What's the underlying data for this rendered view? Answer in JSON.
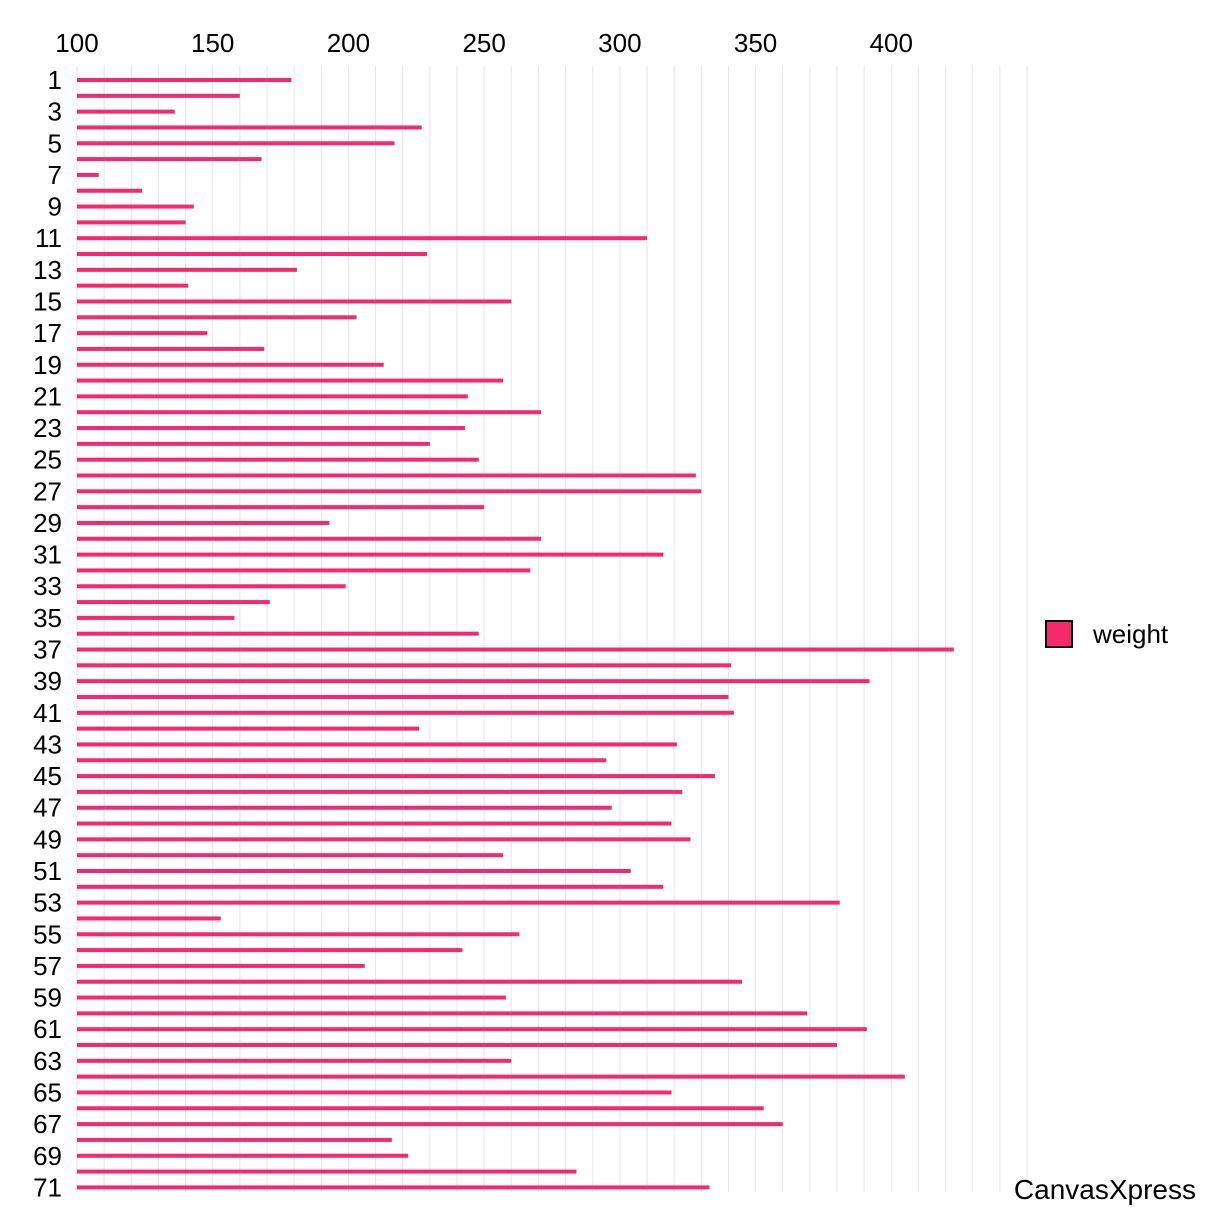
{
  "chart_data": {
    "type": "bar",
    "orientation": "horizontal",
    "categories": [
      "1",
      "2",
      "3",
      "4",
      "5",
      "6",
      "7",
      "8",
      "9",
      "10",
      "11",
      "12",
      "13",
      "14",
      "15",
      "16",
      "17",
      "18",
      "19",
      "20",
      "21",
      "22",
      "23",
      "24",
      "25",
      "26",
      "27",
      "28",
      "29",
      "30",
      "31",
      "32",
      "33",
      "34",
      "35",
      "36",
      "37",
      "38",
      "39",
      "40",
      "41",
      "42",
      "43",
      "44",
      "45",
      "46",
      "47",
      "48",
      "49",
      "50",
      "51",
      "52",
      "53",
      "54",
      "55",
      "56",
      "57",
      "58",
      "59",
      "60",
      "61",
      "62",
      "63",
      "64",
      "65",
      "66",
      "67",
      "68",
      "69",
      "70",
      "71"
    ],
    "category_labels_shown": [
      "1",
      "3",
      "5",
      "7",
      "9",
      "11",
      "13",
      "15",
      "17",
      "19",
      "21",
      "23",
      "25",
      "27",
      "29",
      "31",
      "33",
      "35",
      "37",
      "39",
      "41",
      "43",
      "45",
      "47",
      "49",
      "51",
      "53",
      "55",
      "57",
      "59",
      "61",
      "63",
      "65",
      "67",
      "69",
      "71"
    ],
    "series": [
      {
        "name": "weight",
        "values": [
          179,
          160,
          136,
          227,
          217,
          168,
          108,
          124,
          143,
          140,
          310,
          229,
          181,
          141,
          260,
          203,
          148,
          169,
          213,
          257,
          244,
          271,
          243,
          230,
          248,
          328,
          330,
          250,
          193,
          271,
          316,
          267,
          199,
          171,
          158,
          248,
          423,
          341,
          392,
          340,
          342,
          226,
          321,
          295,
          335,
          323,
          297,
          319,
          326,
          257,
          304,
          316,
          381,
          153,
          263,
          242,
          206,
          345,
          258,
          369,
          391,
          380,
          260,
          405,
          319,
          353,
          360,
          216,
          222,
          284,
          333
        ]
      }
    ],
    "xlim": [
      100,
      450
    ],
    "xticks": [
      "100",
      "150",
      "200",
      "250",
      "300",
      "350",
      "400"
    ],
    "xaxis_position": "top",
    "grid": true,
    "legend": {
      "position": "right",
      "entries": [
        "weight"
      ]
    },
    "colors": {
      "series": "#f5296b",
      "grid": "#e6e6e6",
      "legend_border": "#000000"
    },
    "watermark": "CanvasXpress"
  }
}
